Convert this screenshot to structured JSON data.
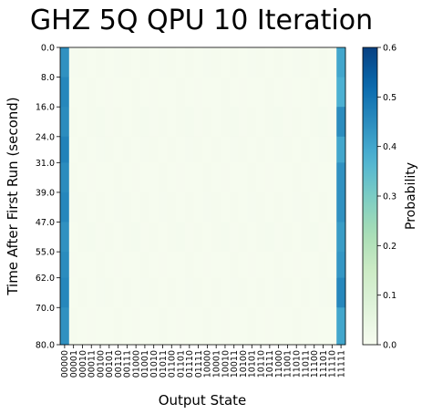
{
  "chart_data": {
    "type": "heatmap",
    "title": "GHZ 5Q QPU 10 Iteration",
    "xlabel": "Output State",
    "ylabel": "Time After First Run (second)",
    "x_categories": [
      "00000",
      "00001",
      "00010",
      "00011",
      "00100",
      "00101",
      "00110",
      "00111",
      "01000",
      "01001",
      "01010",
      "01011",
      "01100",
      "01101",
      "01110",
      "01111",
      "10000",
      "10001",
      "10010",
      "10011",
      "10100",
      "10101",
      "10110",
      "10111",
      "11000",
      "11001",
      "11010",
      "11011",
      "11100",
      "11101",
      "11110",
      "11111"
    ],
    "y_tick_labels": [
      "0.0",
      "8.0",
      "16.0",
      "24.0",
      "31.0",
      "39.0",
      "47.0",
      "55.0",
      "62.0",
      "70.0",
      "80.0"
    ],
    "ylim": [
      0,
      80
    ],
    "colorbar": {
      "label": "Probability",
      "colormap": "GnBu",
      "range": [
        0.0,
        0.6
      ],
      "ticks": [
        "0.0",
        "0.1",
        "0.2",
        "0.3",
        "0.4",
        "0.5",
        "0.6"
      ]
    },
    "rows": [
      {
        "t": 0.0,
        "p00000": 0.44,
        "p11111": 0.4,
        "noise": 0.005
      },
      {
        "t": 8.0,
        "p00000": 0.46,
        "p11111": 0.38,
        "noise": 0.004
      },
      {
        "t": 16.0,
        "p00000": 0.45,
        "p11111": 0.45,
        "noise": 0.006
      },
      {
        "t": 24.0,
        "p00000": 0.47,
        "p11111": 0.4,
        "noise": 0.005
      },
      {
        "t": 31.0,
        "p00000": 0.45,
        "p11111": 0.44,
        "noise": 0.004
      },
      {
        "t": 39.0,
        "p00000": 0.46,
        "p11111": 0.44,
        "noise": 0.005
      },
      {
        "t": 47.0,
        "p00000": 0.44,
        "p11111": 0.42,
        "noise": 0.006
      },
      {
        "t": 55.0,
        "p00000": 0.45,
        "p11111": 0.43,
        "noise": 0.004
      },
      {
        "t": 62.0,
        "p00000": 0.46,
        "p11111": 0.46,
        "noise": 0.005
      },
      {
        "t": 70.0,
        "p00000": 0.44,
        "p11111": 0.4,
        "noise": 0.004
      }
    ]
  }
}
